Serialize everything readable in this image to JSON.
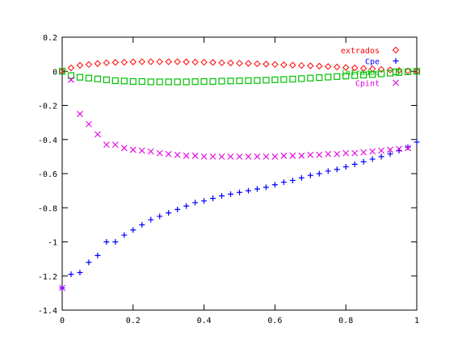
{
  "chart_data": {
    "type": "scatter",
    "xlim": [
      0,
      1
    ],
    "ylim": [
      -1.4,
      0.2
    ],
    "xticks": [
      "0",
      "0.2",
      "0.4",
      "0.6",
      "0.8",
      "1"
    ],
    "xtick_values": [
      0,
      0.2,
      0.4,
      0.6,
      0.8,
      1
    ],
    "yticks": [
      "0.2",
      "0",
      "-0.2",
      "-0.4",
      "-0.6",
      "-0.8",
      "-1",
      "-1.2",
      "-1.4"
    ],
    "ytick_values": [
      0.2,
      0,
      -0.2,
      -0.4,
      -0.6,
      -0.8,
      -1,
      -1.2,
      -1.4
    ],
    "grid": false,
    "legend_position": "top-right",
    "series": [
      {
        "name": "extrados",
        "color": "#ff0000",
        "marker": "diamond",
        "x": [
          0,
          0.025,
          0.05,
          0.075,
          0.1,
          0.125,
          0.15,
          0.175,
          0.2,
          0.225,
          0.25,
          0.275,
          0.3,
          0.325,
          0.35,
          0.375,
          0.4,
          0.425,
          0.45,
          0.475,
          0.5,
          0.525,
          0.55,
          0.575,
          0.6,
          0.625,
          0.65,
          0.675,
          0.7,
          0.725,
          0.75,
          0.775,
          0.8,
          0.825,
          0.85,
          0.875,
          0.9,
          0.925,
          0.95,
          0.975,
          1.0
        ],
        "y": [
          0,
          0.02,
          0.035,
          0.04,
          0.045,
          0.05,
          0.052,
          0.053,
          0.055,
          0.056,
          0.056,
          0.056,
          0.056,
          0.056,
          0.055,
          0.054,
          0.053,
          0.052,
          0.05,
          0.049,
          0.047,
          0.046,
          0.044,
          0.042,
          0.04,
          0.038,
          0.036,
          0.034,
          0.032,
          0.03,
          0.028,
          0.025,
          0.022,
          0.02,
          0.017,
          0.014,
          0.011,
          0.008,
          0.005,
          0.002,
          0
        ]
      },
      {
        "name": "Cpe",
        "color": "#0000ff",
        "marker": "plus",
        "x": [
          0,
          0.025,
          0.05,
          0.075,
          0.1,
          0.125,
          0.15,
          0.175,
          0.2,
          0.225,
          0.25,
          0.275,
          0.3,
          0.325,
          0.35,
          0.375,
          0.4,
          0.425,
          0.45,
          0.475,
          0.5,
          0.525,
          0.55,
          0.575,
          0.6,
          0.625,
          0.65,
          0.675,
          0.7,
          0.725,
          0.75,
          0.775,
          0.8,
          0.825,
          0.85,
          0.875,
          0.9,
          0.925,
          0.95,
          0.975,
          1.0
        ],
        "y": [
          -1.27,
          -1.19,
          -1.18,
          -1.12,
          -1.08,
          -1.0,
          -1.0,
          -0.96,
          -0.93,
          -0.9,
          -0.87,
          -0.85,
          -0.83,
          -0.81,
          -0.79,
          -0.77,
          -0.76,
          -0.745,
          -0.73,
          -0.72,
          -0.71,
          -0.7,
          -0.69,
          -0.68,
          -0.665,
          -0.65,
          -0.64,
          -0.625,
          -0.61,
          -0.6,
          -0.585,
          -0.575,
          -0.56,
          -0.545,
          -0.53,
          -0.515,
          -0.5,
          -0.485,
          -0.465,
          -0.445,
          -0.415
        ]
      },
      {
        "name": "intrados",
        "color": "#00c000",
        "marker": "square",
        "x": [
          0,
          0.025,
          0.05,
          0.075,
          0.1,
          0.125,
          0.15,
          0.175,
          0.2,
          0.225,
          0.25,
          0.275,
          0.3,
          0.325,
          0.35,
          0.375,
          0.4,
          0.425,
          0.45,
          0.475,
          0.5,
          0.525,
          0.55,
          0.575,
          0.6,
          0.625,
          0.65,
          0.675,
          0.7,
          0.725,
          0.75,
          0.775,
          0.8,
          0.825,
          0.85,
          0.875,
          0.9,
          0.925,
          0.95,
          0.975,
          1.0
        ],
        "y": [
          0,
          -0.025,
          -0.035,
          -0.04,
          -0.045,
          -0.05,
          -0.055,
          -0.057,
          -0.06,
          -0.06,
          -0.062,
          -0.062,
          -0.062,
          -0.062,
          -0.062,
          -0.061,
          -0.06,
          -0.06,
          -0.058,
          -0.057,
          -0.056,
          -0.055,
          -0.054,
          -0.052,
          -0.05,
          -0.048,
          -0.046,
          -0.043,
          -0.04,
          -0.037,
          -0.034,
          -0.031,
          -0.028,
          -0.025,
          -0.022,
          -0.019,
          -0.015,
          -0.011,
          -0.007,
          -0.003,
          0
        ]
      },
      {
        "name": "Cpint",
        "color": "#e000e0",
        "marker": "cross",
        "x": [
          0,
          0.025,
          0.05,
          0.075,
          0.1,
          0.125,
          0.15,
          0.175,
          0.2,
          0.225,
          0.25,
          0.275,
          0.3,
          0.325,
          0.35,
          0.375,
          0.4,
          0.425,
          0.45,
          0.475,
          0.5,
          0.525,
          0.55,
          0.575,
          0.6,
          0.625,
          0.65,
          0.675,
          0.7,
          0.725,
          0.75,
          0.775,
          0.8,
          0.825,
          0.85,
          0.875,
          0.9,
          0.925,
          0.95,
          0.975
        ],
        "y": [
          -1.27,
          -0.05,
          -0.25,
          -0.31,
          -0.37,
          -0.43,
          -0.43,
          -0.45,
          -0.46,
          -0.465,
          -0.47,
          -0.48,
          -0.485,
          -0.49,
          -0.495,
          -0.495,
          -0.5,
          -0.5,
          -0.5,
          -0.5,
          -0.5,
          -0.5,
          -0.5,
          -0.5,
          -0.5,
          -0.495,
          -0.495,
          -0.495,
          -0.49,
          -0.49,
          -0.485,
          -0.485,
          -0.48,
          -0.48,
          -0.475,
          -0.47,
          -0.465,
          -0.46,
          -0.455,
          -0.45
        ]
      }
    ],
    "legend": [
      {
        "label": "extrados",
        "series": 0
      },
      {
        "label": "Cpe",
        "series": 1
      },
      {
        "label": "intrados",
        "series": 2
      },
      {
        "label": "Cpint",
        "series": 3
      }
    ]
  }
}
